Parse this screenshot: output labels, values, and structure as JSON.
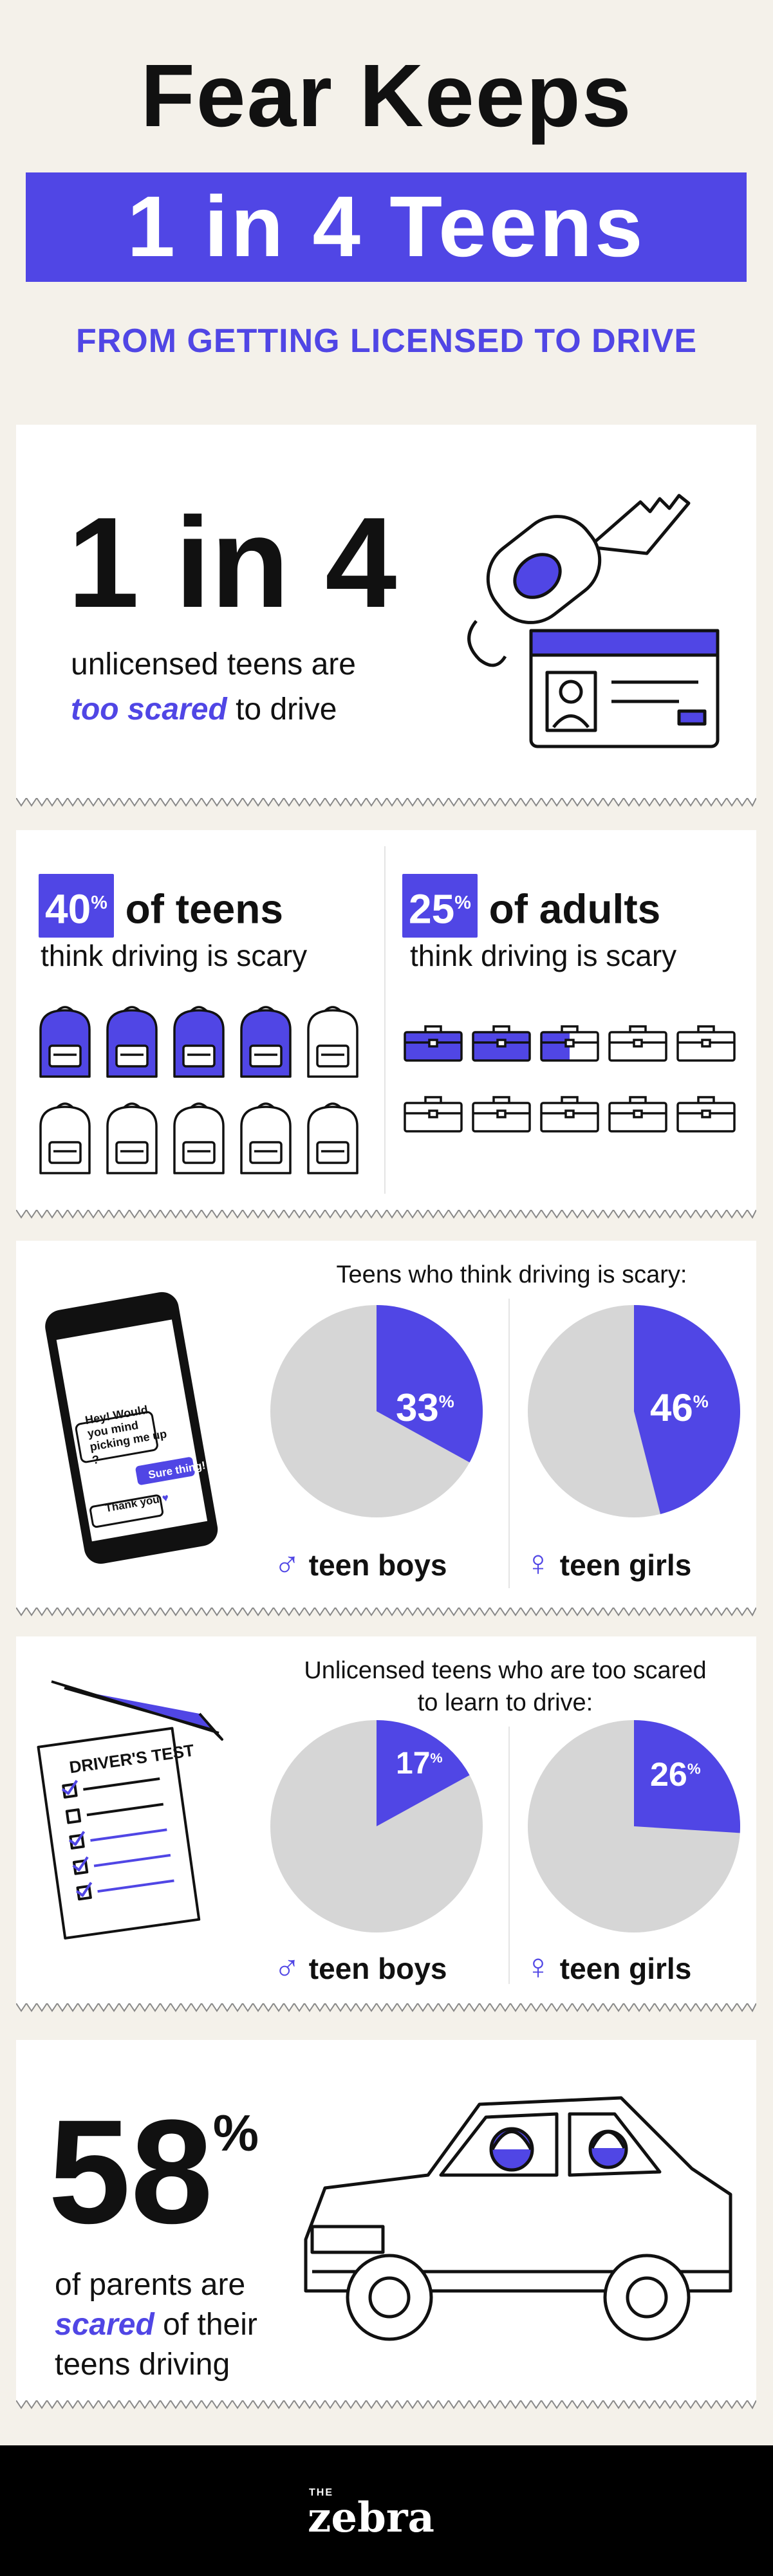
{
  "header": {
    "title_line1": "Fear Keeps",
    "title_line2": "1 in 4 Teens",
    "subtitle": "FROM GETTING LICENSED TO DRIVE"
  },
  "section1": {
    "stat": "1 in 4",
    "text1": "unlicensed teens are",
    "text_emph": "too scared",
    "text2": " to drive"
  },
  "section2": {
    "left": {
      "pct": "40",
      "pct_sign": "%",
      "label": "of teens",
      "desc": "think driving is scary",
      "filled": 4,
      "total": 10,
      "icon": "backpack-icon"
    },
    "right": {
      "pct": "25",
      "pct_sign": "%",
      "label": "of adults",
      "desc": "think driving is scary",
      "filled": 2.5,
      "total": 10,
      "icon": "briefcase-icon"
    }
  },
  "section3": {
    "title": "Teens who think driving is scary:",
    "chat": {
      "msg1": "Hey! Would you mind picking me up ?",
      "msg2": "Sure thing!",
      "msg3": "Thank you"
    },
    "boys": {
      "value": "33",
      "sign": "%",
      "label": "teen boys",
      "fraction": 0.33
    },
    "girls": {
      "value": "46",
      "sign": "%",
      "label": "teen girls",
      "fraction": 0.46
    }
  },
  "section4": {
    "title_line1": "Unlicensed teens who are too scared",
    "title_line2": "to learn to drive:",
    "test_title": "DRIVER'S TEST",
    "boys": {
      "value": "17",
      "sign": "%",
      "label": "teen boys",
      "fraction": 0.17
    },
    "girls": {
      "value": "26",
      "sign": "%",
      "label": "teen girls",
      "fraction": 0.26
    }
  },
  "section5": {
    "stat": "58",
    "sign": "%",
    "text1": "of parents are",
    "text_emph": "scared",
    "text2": " of their",
    "text3": "teens driving"
  },
  "footer": {
    "brand_small": "THE",
    "brand": "zebra"
  },
  "colors": {
    "accent": "#5046e5",
    "pie_gray": "#d6d6d6",
    "background": "#f4f1ea"
  }
}
